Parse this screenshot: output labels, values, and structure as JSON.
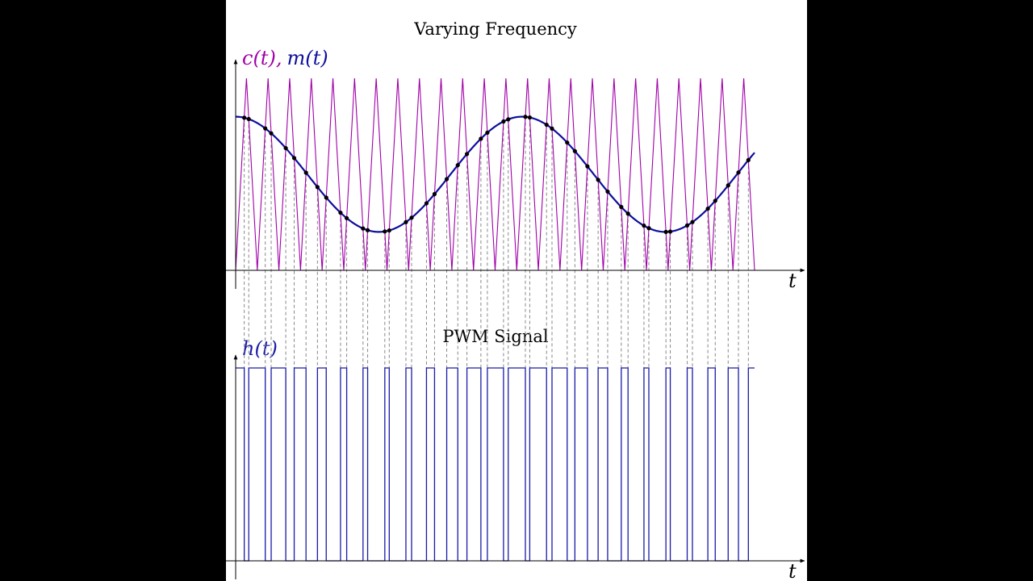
{
  "chart_data": [
    {
      "type": "line",
      "title": "Varying Frequency",
      "ylabel_parts": [
        "c(t)",
        ",",
        "m(t)"
      ],
      "xlabel": "t",
      "colors": {
        "carrier": "#a000a8",
        "modulating": "#0d0d9e",
        "points": "#000000",
        "dashed": "#888888"
      },
      "series": [
        {
          "name": "c(t)",
          "kind": "triangle",
          "periods": 24,
          "min": 0,
          "max": 1
        },
        {
          "name": "m(t)",
          "kind": "cosine",
          "offset": 0.5,
          "amplitude": 0.3,
          "period": 13.25
        }
      ],
      "xlim": [
        0,
        24
      ],
      "ylim": [
        0,
        1
      ]
    },
    {
      "type": "line",
      "title": "PWM Signal",
      "ylabel": "h(t)",
      "xlabel": "t",
      "colors": {
        "signal": "#1a1aa8"
      },
      "levels": [
        0,
        1
      ],
      "rule": "h(t) = 1 when c(t) < m(t), else 0",
      "xlim": [
        0,
        24
      ]
    }
  ]
}
